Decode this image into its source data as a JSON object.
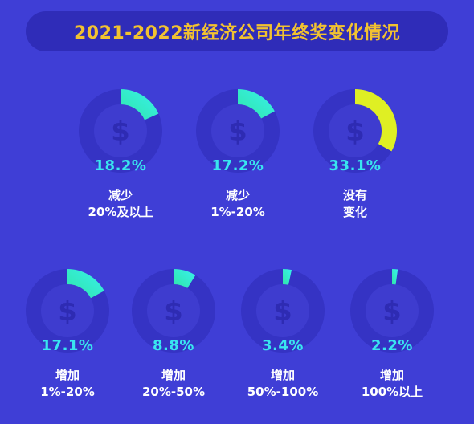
{
  "title": "2021-2022新经济公司年终奖变化情况",
  "colors": {
    "background": "#3f3ed6",
    "title_pill": "#2f2cb8",
    "title_text": "#f2c230",
    "ring_track": "#3533c4",
    "inner_circle": "#3e3ccf",
    "dollar_symbol": "#2e2bb3",
    "percent_text": "#39e6ef",
    "segment_gradient_start": "#2fe6a8",
    "segment_gradient_end": "#39f0ee",
    "highlight_segment": "#dfef23",
    "label_text": "#ffffff"
  },
  "icons": {
    "center": "dollar-icon"
  },
  "chart_data": {
    "type": "pie",
    "title": "2021-2022新经济公司年终奖变化情况",
    "unit": "%",
    "items": [
      {
        "label_line1": "减少",
        "label_line2": "20%及以上",
        "value": 18.2,
        "display": "18.2%",
        "highlight": false
      },
      {
        "label_line1": "减少",
        "label_line2": "1%-20%",
        "value": 17.2,
        "display": "17.2%",
        "highlight": false
      },
      {
        "label_line1": "没有",
        "label_line2": "变化",
        "value": 33.1,
        "display": "33.1%",
        "highlight": true
      },
      {
        "label_line1": "增加",
        "label_line2": "1%-20%",
        "value": 17.1,
        "display": "17.1%",
        "highlight": false
      },
      {
        "label_line1": "增加",
        "label_line2": "20%-50%",
        "value": 8.8,
        "display": "8.8%",
        "highlight": false
      },
      {
        "label_line1": "增加",
        "label_line2": "50%-100%",
        "value": 3.4,
        "display": "3.4%",
        "highlight": false
      },
      {
        "label_line1": "增加",
        "label_line2": "100%以上",
        "value": 2.2,
        "display": "2.2%",
        "highlight": false
      }
    ]
  }
}
